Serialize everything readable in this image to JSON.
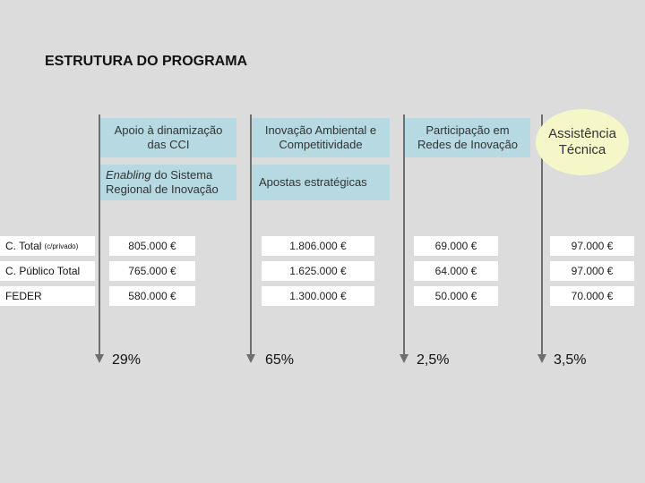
{
  "title": "ESTRUTURA DO PROGRAMA",
  "columns": [
    {
      "heading": "Apoio à dinamização das CCI",
      "subheading_em": "Enabling",
      "subheading_rest": " do Sistema Regional de Inovação",
      "percent": "29%"
    },
    {
      "heading": "Inovação Ambiental e Competitividade",
      "subheading": "Apostas estratégicas",
      "percent": "65%"
    },
    {
      "heading": "Participação em Redes de Inovação",
      "percent": "2,5%"
    },
    {
      "heading": "Assistência Técnica",
      "percent": "3,5%"
    }
  ],
  "rows": [
    {
      "label": "C. Total",
      "label_sub": "(c/privado)",
      "values": [
        "805.000 €",
        "1.806.000 €",
        "69.000 €",
        "97.000 €"
      ]
    },
    {
      "label": "C. Público Total",
      "values": [
        "765.000 €",
        "1.625.000 €",
        "64.000 €",
        "97.000 €"
      ]
    },
    {
      "label": "FEDER",
      "values": [
        "580.000 €",
        "1.300.000 €",
        "50.000 €",
        "70.000 €"
      ]
    }
  ],
  "colors": {
    "background": "#dcdcdc",
    "box": "#b6d9e2",
    "circle": "#f6f7c8",
    "line": "#6e6e6e"
  }
}
